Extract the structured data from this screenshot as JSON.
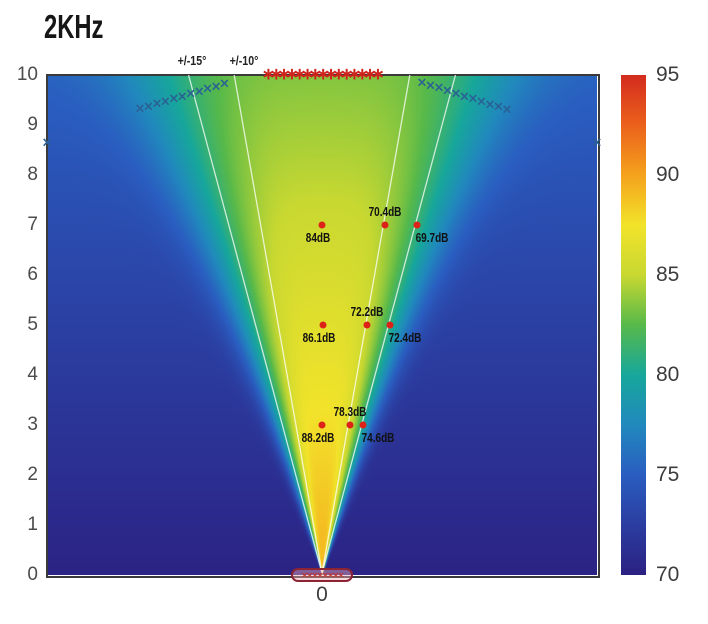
{
  "figure": {
    "title": "2KHz"
  },
  "chart_data": {
    "type": "heatmap",
    "title": "2KHz",
    "description_fields": {
      "x_tick_label": "0",
      "y_ticks": [
        0,
        1,
        2,
        3,
        4,
        5,
        6,
        7,
        8,
        9,
        10
      ],
      "x_range_units": [
        -5.5,
        5.5
      ],
      "y_range_units": [
        0,
        10
      ]
    },
    "colorbar": {
      "min": 70,
      "max": 95,
      "tick_labels": [
        "95",
        "90",
        "85",
        "80",
        "75",
        "70"
      ],
      "tick_values": [
        95,
        90,
        85,
        80,
        75,
        70
      ],
      "stops": [
        {
          "t": 0.0,
          "color": "#2b2182"
        },
        {
          "t": 0.1,
          "color": "#2b3da0"
        },
        {
          "t": 0.2,
          "color": "#2a5dc0"
        },
        {
          "t": 0.3,
          "color": "#2189bd"
        },
        {
          "t": 0.4,
          "color": "#17a79b"
        },
        {
          "t": 0.5,
          "color": "#57b94a"
        },
        {
          "t": 0.6,
          "color": "#c8d831"
        },
        {
          "t": 0.7,
          "color": "#f2e32a"
        },
        {
          "t": 0.8,
          "color": "#f5a21d"
        },
        {
          "t": 0.9,
          "color": "#eb611c"
        },
        {
          "t": 1.0,
          "color": "#d32b1e"
        }
      ]
    },
    "beam_lines": {
      "angles_deg": [
        10,
        15
      ],
      "color": "rgba(255,255,255,0.75)",
      "labels": [
        {
          "text": "+/-15°",
          "angle_deg": 15,
          "side": -1,
          "dx": 3
        },
        {
          "text": "+/-10°",
          "angle_deg": 10,
          "side": -1,
          "dx": 10
        }
      ]
    },
    "apex": {
      "x": 0,
      "y": 0
    },
    "measurements": [
      {
        "height": 7,
        "points": [
          {
            "x": 0.0,
            "y": 7,
            "value_label": "84dB",
            "label_pos": "below-left"
          },
          {
            "x": 1.26,
            "y": 7,
            "value_label": "70.4dB",
            "label_pos": "above"
          },
          {
            "x": 1.9,
            "y": 7,
            "value_label": "69.7dB",
            "label_pos": "below-right"
          }
        ]
      },
      {
        "height": 5,
        "points": [
          {
            "x": 0.02,
            "y": 5,
            "value_label": "86.1dB",
            "label_pos": "below-left"
          },
          {
            "x": 0.9,
            "y": 5,
            "value_label": "72.2dB",
            "label_pos": "above"
          },
          {
            "x": 1.36,
            "y": 5,
            "value_label": "72.4dB",
            "label_pos": "below-right"
          }
        ]
      },
      {
        "height": 3,
        "points": [
          {
            "x": 0.0,
            "y": 3,
            "value_label": "88.2dB",
            "label_pos": "below-left"
          },
          {
            "x": 0.56,
            "y": 3,
            "value_label": "78.3dB",
            "label_pos": "above"
          },
          {
            "x": 0.82,
            "y": 3,
            "value_label": "74.6dB",
            "label_pos": "below-right"
          }
        ]
      }
    ],
    "dot_color": "#dd2318",
    "marker_chains": [
      {
        "name": "left-beamwidth-chain",
        "symbol": "×",
        "color": "#2a6094",
        "size": 13,
        "from": {
          "x": -3.64,
          "y": 9.32
        },
        "to": {
          "x": -1.95,
          "y": 9.82
        },
        "count": 11
      },
      {
        "name": "right-beamwidth-chain",
        "symbol": "×",
        "color": "#2a6094",
        "size": 13,
        "from": {
          "x": 2.0,
          "y": 9.84
        },
        "to": {
          "x": 3.7,
          "y": 9.3
        },
        "count": 11
      },
      {
        "name": "top-source-asterisks",
        "symbol": "∗",
        "color": "#ce241c",
        "size": 17,
        "from": {
          "x": -1.07,
          "y": 10.0
        },
        "to": {
          "x": 1.12,
          "y": 10.0
        },
        "count": 15
      }
    ],
    "edge_markers": {
      "symbol": "×",
      "color": "#2a6094",
      "size": 13,
      "points": [
        {
          "x": -5.5,
          "y": 8.64
        },
        {
          "x": 5.5,
          "y": 8.64
        }
      ]
    },
    "transducer": {
      "x": 0,
      "y": 0,
      "half_width_units": 0.6,
      "outline_color": "#8d2434",
      "fill_color": "rgba(240,168,178,0.45)",
      "inner_symbols": "××××××××"
    },
    "field_model": {
      "peak_cap": 89,
      "peak0": 89.5,
      "peak_slope": 0.6,
      "bg0": 70.2,
      "bg_slope": 0.5,
      "sigma0": 15.5,
      "sigma_slope": 0.45,
      "exponent": 4,
      "vmin": 70,
      "vmax": 95
    }
  }
}
